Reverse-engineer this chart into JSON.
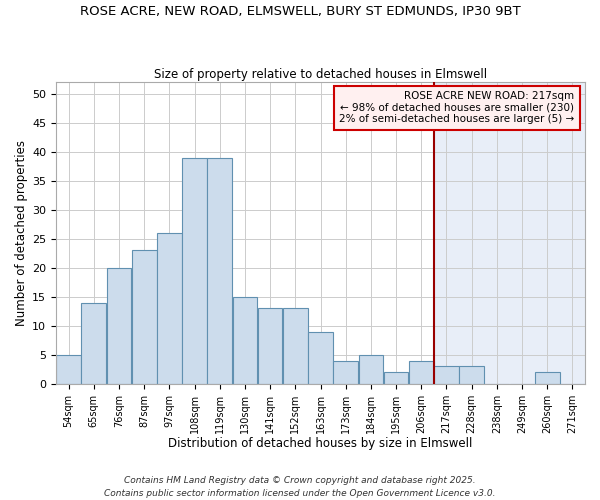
{
  "title_line1": "ROSE ACRE, NEW ROAD, ELMSWELL, BURY ST EDMUNDS, IP30 9BT",
  "title_line2": "Size of property relative to detached houses in Elmswell",
  "xlabel": "Distribution of detached houses by size in Elmswell",
  "ylabel": "Number of detached properties",
  "categories": [
    "54sqm",
    "65sqm",
    "76sqm",
    "87sqm",
    "97sqm",
    "108sqm",
    "119sqm",
    "130sqm",
    "141sqm",
    "152sqm",
    "163sqm",
    "173sqm",
    "184sqm",
    "195sqm",
    "206sqm",
    "217sqm",
    "228sqm",
    "238sqm",
    "249sqm",
    "260sqm",
    "271sqm"
  ],
  "values": [
    5,
    14,
    20,
    23,
    26,
    39,
    39,
    15,
    13,
    13,
    9,
    4,
    5,
    2,
    4,
    3,
    3,
    0,
    0,
    2,
    0
  ],
  "bar_color": "#ccdcec",
  "bar_edge_color": "#6090b0",
  "vline_color": "#990000",
  "vline_index": 15,
  "left_bg_color": "#ffffff",
  "right_bg_color": "#e8eef8",
  "annotation_title": "ROSE ACRE NEW ROAD: 217sqm",
  "annotation_line2": "← 98% of detached houses are smaller (230)",
  "annotation_line3": "2% of semi-detached houses are larger (5) →",
  "annotation_box_facecolor": "#fff0f0",
  "annotation_box_edgecolor": "#cc0000",
  "ylim": [
    0,
    52
  ],
  "yticks": [
    0,
    5,
    10,
    15,
    20,
    25,
    30,
    35,
    40,
    45,
    50
  ],
  "footer_line1": "Contains HM Land Registry data © Crown copyright and database right 2025.",
  "footer_line2": "Contains public sector information licensed under the Open Government Licence v3.0.",
  "fig_facecolor": "#ffffff"
}
